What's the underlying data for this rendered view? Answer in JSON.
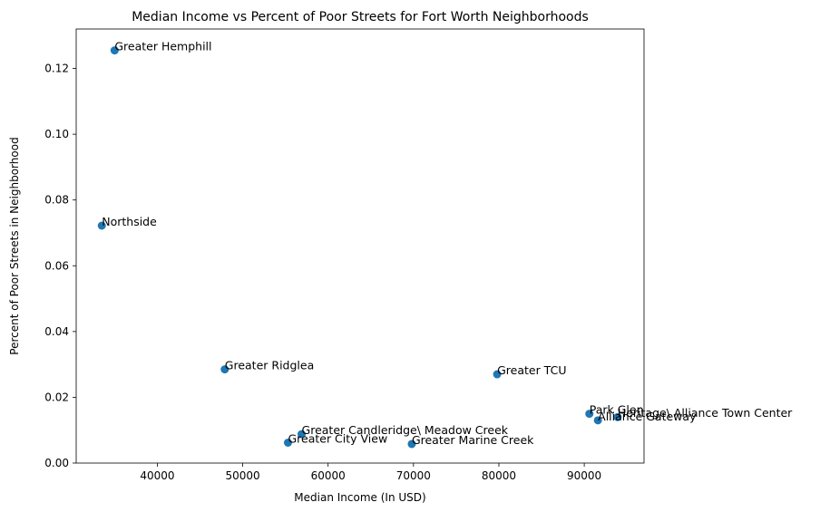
{
  "chart_data": {
    "type": "scatter",
    "title": "Median Income vs Percent of Poor Streets for Fort Worth Neighborhoods",
    "xlabel": "Median Income (In USD)",
    "ylabel": "Percent of Poor Streets in Neighborhood",
    "xlim": [
      30500,
      97000
    ],
    "ylim": [
      0,
      0.132
    ],
    "xticks": [
      40000,
      50000,
      60000,
      70000,
      80000,
      90000
    ],
    "yticks": [
      0.0,
      0.02,
      0.04,
      0.06,
      0.08,
      0.1,
      0.12
    ],
    "ytick_labels": [
      "0.00",
      "0.02",
      "0.04",
      "0.06",
      "0.08",
      "0.10",
      "0.12"
    ],
    "grid": false,
    "marker_color": "#1f77b4",
    "points": [
      {
        "label": "Greater Hemphill",
        "x": 35000,
        "y": 0.1255
      },
      {
        "label": "Northside",
        "x": 33500,
        "y": 0.0722
      },
      {
        "label": "Greater Ridglea",
        "x": 47900,
        "y": 0.0285
      },
      {
        "label": "Greater TCU",
        "x": 79800,
        "y": 0.027
      },
      {
        "label": "Park Glen",
        "x": 90600,
        "y": 0.015
      },
      {
        "label": "Alliance Gateway",
        "x": 91600,
        "y": 0.013
      },
      {
        "label": "Heritage\\ Alliance Town Center",
        "x": 93900,
        "y": 0.014
      },
      {
        "label": "Greater Candleridge\\ Meadow Creek",
        "x": 56900,
        "y": 0.0088
      },
      {
        "label": "Greater City View",
        "x": 55300,
        "y": 0.0062
      },
      {
        "label": "Greater Marine Creek",
        "x": 69800,
        "y": 0.0058
      }
    ]
  }
}
